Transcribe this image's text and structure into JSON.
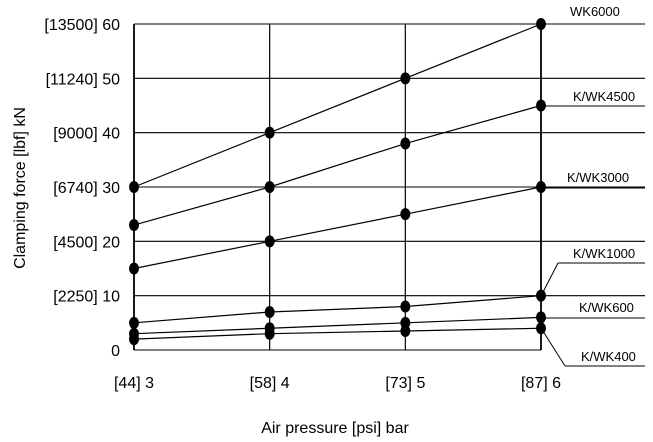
{
  "chart_data": {
    "type": "line",
    "xlabel": "Air pressure [psi] bar",
    "ylabel": "Clamping force  [lbf] kN",
    "x": [
      3,
      4,
      5,
      6
    ],
    "xlim": [
      3,
      6
    ],
    "ylim": [
      0,
      60
    ],
    "grid": true,
    "x_tick_labels": [
      "[44] 3",
      "[58] 4",
      "[73] 5",
      "[87] 6"
    ],
    "y_ticks": [
      0,
      10,
      20,
      30,
      40,
      50,
      60
    ],
    "y_tick_labels": [
      "0",
      "[2250] 10",
      "[4500] 20",
      "[6740] 30",
      "[9000] 40",
      "[11240] 50",
      "[13500] 60"
    ],
    "series": [
      {
        "name": "WK6000",
        "values": [
          30,
          40,
          50,
          60
        ]
      },
      {
        "name": "K/WK4500",
        "values": [
          23,
          30,
          38,
          45
        ]
      },
      {
        "name": "K/WK3000",
        "values": [
          15,
          20,
          25,
          30
        ]
      },
      {
        "name": "K/WK1000",
        "values": [
          5,
          7,
          8,
          10
        ]
      },
      {
        "name": "K/WK600",
        "values": [
          3,
          4,
          5,
          6
        ]
      },
      {
        "name": "K/WK400",
        "values": [
          2,
          3,
          3.5,
          4
        ]
      }
    ]
  }
}
